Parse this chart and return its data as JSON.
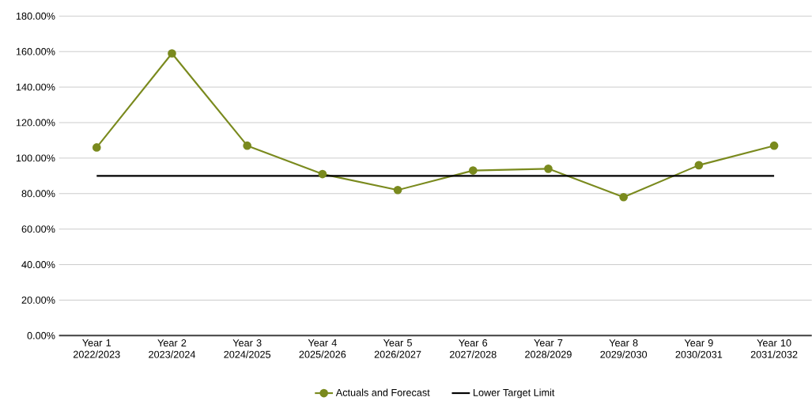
{
  "chart_data": {
    "type": "line",
    "categories": [
      "Year 1 2022/2023",
      "Year 2 2023/2024",
      "Year 3 2024/2025",
      "Year 4 2025/2026",
      "Year 5 2026/2027",
      "Year 6 2027/2028",
      "Year 7 2028/2029",
      "Year 8 2029/2030",
      "Year 9 2030/2031",
      "Year 10 2031/2032"
    ],
    "series": [
      {
        "name": "Actuals and Forecast",
        "color": "#7a8a1e",
        "marker": "circle",
        "values": [
          106,
          159,
          107,
          91,
          82,
          93,
          94,
          78,
          96,
          107
        ]
      },
      {
        "name": "Lower Target Limit",
        "color": "#000000",
        "marker": "none",
        "values": [
          90,
          90,
          90,
          90,
          90,
          90,
          90,
          90,
          90,
          90
        ]
      }
    ],
    "ylim": [
      0,
      180
    ],
    "yticks": [
      {
        "value": 0,
        "label": "0.00%"
      },
      {
        "value": 20,
        "label": "20.00%"
      },
      {
        "value": 40,
        "label": "40.00%"
      },
      {
        "value": 60,
        "label": "60.00%"
      },
      {
        "value": 80,
        "label": "80.00%"
      },
      {
        "value": 100,
        "label": "100.00%"
      },
      {
        "value": 120,
        "label": "120.00%"
      },
      {
        "value": 140,
        "label": "140.00%"
      },
      {
        "value": 160,
        "label": "160.00%"
      },
      {
        "value": 180,
        "label": "180.00%"
      }
    ],
    "grid": "y",
    "legend": "bottom",
    "line_style": "solid"
  }
}
